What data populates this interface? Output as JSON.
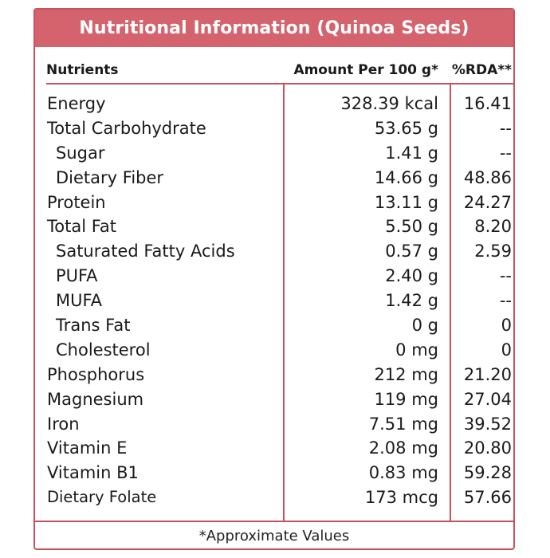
{
  "colors": {
    "accent": "#d4636d",
    "border": "#c9525f",
    "title_text": "#ffffff",
    "body_text": "#1a1a1a"
  },
  "title": "Nutritional Information (Quinoa Seeds)",
  "headers": {
    "nutrients": "Nutrients",
    "amount": "Amount Per 100 g*",
    "rda": "%RDA**"
  },
  "rows": [
    {
      "name": "Energy",
      "amount": "328.39 kcal",
      "rda": "16.41",
      "indent": false
    },
    {
      "name": "Total Carbohydrate",
      "amount": "53.65 g",
      "rda": "--",
      "indent": false
    },
    {
      "name": "Sugar",
      "amount": "1.41 g",
      "rda": "--",
      "indent": true
    },
    {
      "name": "Dietary Fiber",
      "amount": "14.66 g",
      "rda": "48.86",
      "indent": true
    },
    {
      "name": "Protein",
      "amount": "13.11 g",
      "rda": "24.27",
      "indent": false
    },
    {
      "name": "Total Fat",
      "amount": "5.50 g",
      "rda": "8.20",
      "indent": false
    },
    {
      "name": "Saturated Fatty Acids",
      "amount": "0.57 g",
      "rda": "2.59",
      "indent": true
    },
    {
      "name": "PUFA",
      "amount": "2.40 g",
      "rda": "--",
      "indent": true
    },
    {
      "name": "MUFA",
      "amount": "1.42 g",
      "rda": "--",
      "indent": true
    },
    {
      "name": "Trans Fat",
      "amount": "0 g",
      "rda": "0",
      "indent": true
    },
    {
      "name": "Cholesterol",
      "amount": "0 mg",
      "rda": "0",
      "indent": true
    },
    {
      "name": "Phosphorus",
      "amount": "212 mg",
      "rda": "21.20",
      "indent": false
    },
    {
      "name": "Magnesium",
      "amount": "119 mg",
      "rda": "27.04",
      "indent": false
    },
    {
      "name": "Iron",
      "amount": "7.51 mg",
      "rda": "39.52",
      "indent": false
    },
    {
      "name": "Vitamin E",
      "amount": "2.08 mg",
      "rda": "20.80",
      "indent": false
    },
    {
      "name": "Vitamin B1",
      "amount": "0.83 mg",
      "rda": "59.28",
      "indent": false
    },
    {
      "name": "Dietary Folate",
      "amount": "173 mcg",
      "rda": "57.66",
      "indent": false,
      "small": true
    }
  ],
  "footnote": "*Approximate Values"
}
